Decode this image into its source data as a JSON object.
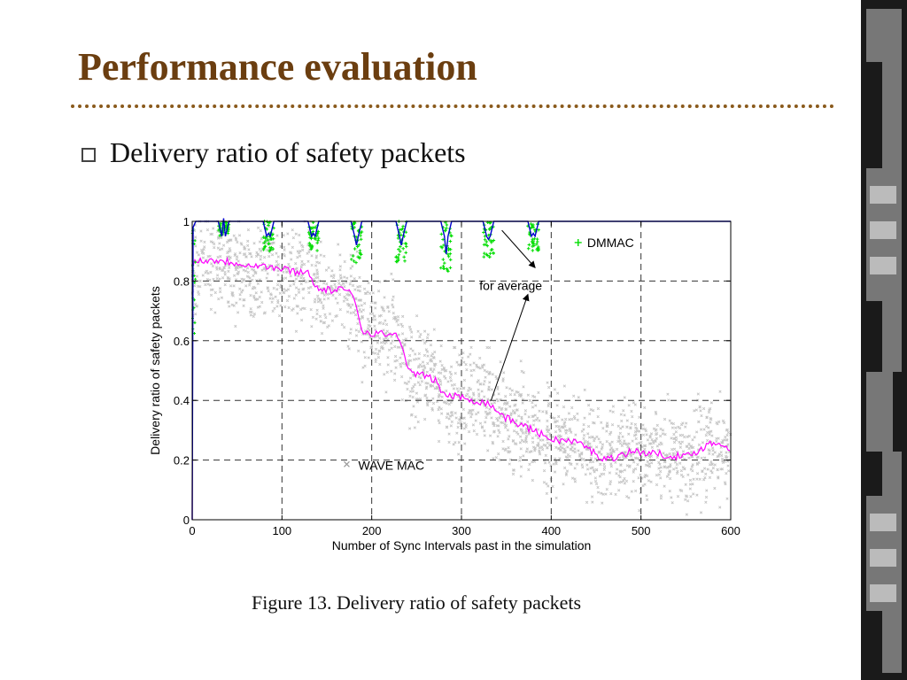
{
  "slide": {
    "title": "Performance evaluation",
    "bullet": "Delivery ratio of safety packets",
    "caption": "Figure 13.  Delivery ratio of safety packets"
  },
  "colors": {
    "title": "#6b3e10",
    "rule": "#8a5a1c",
    "wave_mac": "#c4c4c4",
    "average": "#ff00ff",
    "dmmac": "#00dd00",
    "dmmac_line": "#0000cc"
  },
  "chart_data": {
    "type": "scatter",
    "title": "",
    "xlabel": "Number of Sync Intervals past in the simulation",
    "ylabel": "Delivery ratio of safety packets",
    "xlim": [
      0,
      600
    ],
    "ylim": [
      0,
      1
    ],
    "xticks": [
      0,
      100,
      200,
      300,
      400,
      500,
      600
    ],
    "yticks": [
      0,
      0.2,
      0.4,
      0.6,
      0.8,
      1
    ],
    "ytick_labels": [
      "0",
      "0.2",
      "0.4",
      "0.6",
      "0.8",
      "1"
    ],
    "grid": true,
    "series": [
      {
        "name": "WAVE MAC",
        "marker": "x",
        "x": [
          0,
          10,
          30,
          50,
          80,
          100,
          120,
          130,
          140,
          170,
          180,
          190,
          220,
          230,
          240,
          270,
          280,
          300,
          330,
          350,
          380,
          400,
          430,
          460,
          490,
          520,
          550,
          580,
          600
        ],
        "y": [
          0.83,
          0.85,
          0.86,
          0.85,
          0.84,
          0.84,
          0.83,
          0.83,
          0.76,
          0.76,
          0.74,
          0.63,
          0.62,
          0.62,
          0.5,
          0.47,
          0.42,
          0.41,
          0.39,
          0.34,
          0.3,
          0.27,
          0.26,
          0.2,
          0.23,
          0.22,
          0.21,
          0.26,
          0.24
        ],
        "spread": 0.13
      },
      {
        "name": "Average",
        "x": [
          0,
          10,
          30,
          50,
          80,
          100,
          120,
          130,
          140,
          170,
          180,
          190,
          220,
          230,
          240,
          270,
          280,
          300,
          330,
          350,
          380,
          400,
          430,
          460,
          490,
          520,
          550,
          580,
          600
        ],
        "y": [
          0.86,
          0.87,
          0.87,
          0.86,
          0.85,
          0.84,
          0.83,
          0.83,
          0.77,
          0.77,
          0.75,
          0.63,
          0.62,
          0.62,
          0.5,
          0.47,
          0.42,
          0.41,
          0.39,
          0.34,
          0.3,
          0.27,
          0.26,
          0.2,
          0.23,
          0.22,
          0.21,
          0.26,
          0.24
        ]
      },
      {
        "name": "DMMAC",
        "marker": "+",
        "baseline": 1.0,
        "dips": [
          {
            "x": 35,
            "min": 0.95
          },
          {
            "x": 85,
            "min": 0.9
          },
          {
            "x": 135,
            "min": 0.9
          },
          {
            "x": 183,
            "min": 0.86
          },
          {
            "x": 233,
            "min": 0.86
          },
          {
            "x": 283,
            "min": 0.83
          },
          {
            "x": 330,
            "min": 0.88
          },
          {
            "x": 380,
            "min": 0.9
          }
        ]
      }
    ],
    "annotations": [
      {
        "text": "DMMAC",
        "x": 440,
        "y": 0.92
      },
      {
        "text": "for average",
        "x": 320,
        "y": 0.77
      },
      {
        "text": "WAVE MAC",
        "x": 185,
        "y": 0.18
      }
    ]
  }
}
